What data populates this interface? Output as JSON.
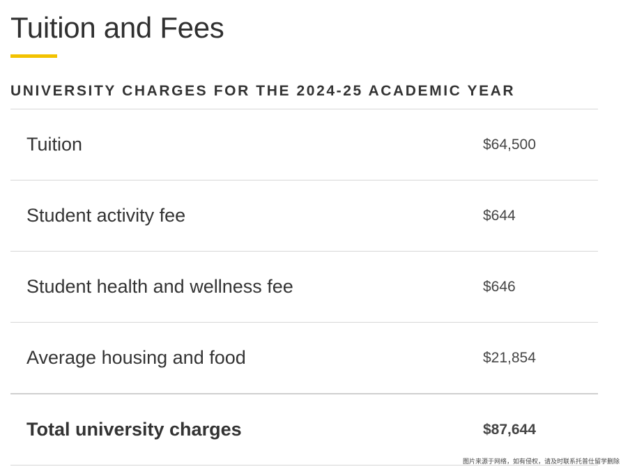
{
  "page": {
    "title": "Tuition and Fees",
    "accent_color": "#f2c200"
  },
  "section": {
    "heading": "UNIVERSITY CHARGES FOR THE 2024-25 ACADEMIC YEAR"
  },
  "charges": [
    {
      "label": "Tuition",
      "amount": "$64,500"
    },
    {
      "label": "Student activity fee",
      "amount": "$644"
    },
    {
      "label": "Student health and wellness fee",
      "amount": "$646"
    },
    {
      "label": "Average housing and food",
      "amount": "$21,854"
    }
  ],
  "total": {
    "label": "Total university charges",
    "amount": "$87,644"
  },
  "watermark": {
    "text": "图片来源于网络，如有侵权，请及时联系托普仕留学删除"
  }
}
